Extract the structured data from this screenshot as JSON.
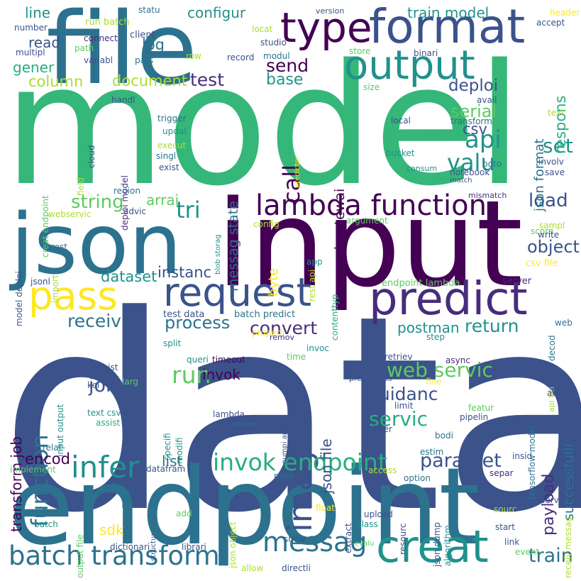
{
  "palette": [
    "#440154",
    "#472d7b",
    "#3b528b",
    "#2c728e",
    "#21918c",
    "#28ae80",
    "#5ec962",
    "#addc30",
    "#fde725"
  ],
  "words": [
    {
      "text": "data",
      "color": "#3b528b"
    },
    {
      "text": "model",
      "color": "#35b779"
    },
    {
      "text": "endpoint",
      "color": "#2c728e"
    },
    {
      "text": "input",
      "color": "#440154"
    },
    {
      "text": "json",
      "color": "#2c728e"
    },
    {
      "text": "file",
      "color": "#2c728e"
    },
    {
      "text": "format",
      "color": "#3b528b"
    },
    {
      "text": "type",
      "color": "#440154"
    },
    {
      "text": "output",
      "color": "#21918c"
    },
    {
      "text": "predict",
      "color": "#472d7b"
    },
    {
      "text": "request",
      "color": "#3b528b"
    },
    {
      "text": "pass",
      "color": "#fde725"
    },
    {
      "text": "creat",
      "color": "#21918c"
    },
    {
      "text": "lambda function",
      "color": "#440154"
    },
    {
      "text": "imag",
      "color": "#3b528b"
    },
    {
      "text": "messag",
      "color": "#2c728e"
    },
    {
      "text": "batch transform",
      "color": "#2c728e"
    },
    {
      "text": "infer",
      "color": "#21918c"
    },
    {
      "text": "invok endpoint",
      "color": "#28ae80"
    },
    {
      "text": "function",
      "color": "#2c728e"
    },
    {
      "text": "tri",
      "color": "#21918c"
    },
    {
      "text": "api",
      "color": "#21918c"
    },
    {
      "text": "call",
      "color": "#440154"
    },
    {
      "text": "valu",
      "color": "#21918c"
    },
    {
      "text": "set",
      "color": "#21918c"
    },
    {
      "text": "load",
      "color": "#3b528b"
    },
    {
      "text": "object",
      "color": "#3b528b"
    },
    {
      "text": "web servic",
      "color": "#5ec962"
    },
    {
      "text": "servic",
      "color": "#28ae80"
    },
    {
      "text": "job",
      "color": "#3b528b"
    },
    {
      "text": "run",
      "color": "#5ec962"
    },
    {
      "text": "receiv",
      "color": "#2c728e"
    },
    {
      "text": "paramet",
      "color": "#3b528b"
    },
    {
      "text": "string",
      "color": "#5ec962"
    },
    {
      "text": "train",
      "color": "#2c728e"
    },
    {
      "text": "convert",
      "color": "#472d7b"
    },
    {
      "text": "return",
      "color": "#21918c"
    },
    {
      "text": "process",
      "color": "#2c728e"
    },
    {
      "text": "guidanc",
      "color": "#3b528b"
    },
    {
      "text": "test",
      "color": "#472d7b"
    },
    {
      "text": "send",
      "color": "#440154"
    },
    {
      "text": "base",
      "color": "#21918c"
    },
    {
      "text": "deploi",
      "color": "#3b528b"
    },
    {
      "text": "serial",
      "color": "#5ec962"
    },
    {
      "text": "csv",
      "color": "#3b528b"
    },
    {
      "text": "document",
      "color": "#addc30"
    },
    {
      "text": "column",
      "color": "#addc30"
    },
    {
      "text": "dataset",
      "color": "#21918c"
    },
    {
      "text": "instanc",
      "color": "#3b528b"
    },
    {
      "text": "arrai",
      "color": "#5ec962"
    },
    {
      "text": "postman",
      "color": "#21918c"
    },
    {
      "text": "list",
      "color": "#2c728e"
    },
    {
      "text": "encod",
      "color": "#440154"
    },
    {
      "text": "sdk",
      "color": "#fde725"
    },
    {
      "text": "invok",
      "color": "#440154"
    },
    {
      "text": "train model",
      "color": "#21918c"
    },
    {
      "text": "configur",
      "color": "#21918c"
    },
    {
      "text": "log",
      "color": "#2c728e"
    },
    {
      "text": "line",
      "color": "#21918c"
    },
    {
      "text": "read",
      "color": "#3b528b"
    },
    {
      "text": "gener",
      "color": "#28ae80"
    },
    {
      "text": "transform job",
      "color": "#440154"
    },
    {
      "text": "json file",
      "color": "#3b528b"
    },
    {
      "text": "payload",
      "color": "#472d7b"
    },
    {
      "text": "successfulli",
      "color": "#2c728e"
    },
    {
      "text": "json format",
      "color": "#2c728e"
    },
    {
      "text": "respons",
      "color": "#28ae80"
    },
    {
      "text": "api gatewai",
      "color": "#440154"
    },
    {
      "text": "messag state",
      "color": "#2c728e"
    },
    {
      "text": "byte",
      "color": "#fde725"
    },
    {
      "text": "test data",
      "color": "#3b528b"
    },
    {
      "text": "batch predict",
      "color": "#2c728e"
    },
    {
      "text": "endpoint lambda",
      "color": "#5ec962"
    },
    {
      "text": "run batch",
      "color": "#addc30"
    },
    {
      "text": "client",
      "color": "#3b528b"
    },
    {
      "text": "connect",
      "color": "#472d7b"
    },
    {
      "text": "path",
      "color": "#5ec962"
    },
    {
      "text": "variabl",
      "color": "#3b528b"
    },
    {
      "text": "pars",
      "color": "#2c728e"
    },
    {
      "text": "multipl",
      "color": "#3b528b"
    },
    {
      "text": "number",
      "color": "#3b528b"
    },
    {
      "text": "statu",
      "color": "#2c728e"
    },
    {
      "text": "version",
      "color": "#3b528b"
    },
    {
      "text": "locat",
      "color": "#addc30"
    },
    {
      "text": "studio",
      "color": "#3b528b"
    },
    {
      "text": "record",
      "color": "#3b528b"
    },
    {
      "text": "modul",
      "color": "#2c728e"
    },
    {
      "text": "row",
      "color": "#addc30"
    },
    {
      "text": "header",
      "color": "#fde725"
    },
    {
      "text": "accept",
      "color": "#3b528b"
    },
    {
      "text": "store",
      "color": "#5ec962"
    },
    {
      "text": "binari",
      "color": "#3b528b"
    },
    {
      "text": "size",
      "color": "#5ec962"
    },
    {
      "text": "avail",
      "color": "#3b528b"
    },
    {
      "text": "handl",
      "color": "#3b528b"
    },
    {
      "text": "trigger",
      "color": "#2c728e"
    },
    {
      "text": "updat",
      "color": "#21918c"
    },
    {
      "text": "execut",
      "color": "#addc30"
    },
    {
      "text": "singl",
      "color": "#2c728e"
    },
    {
      "text": "exist",
      "color": "#3b528b"
    },
    {
      "text": "cloud",
      "color": "#3b528b"
    },
    {
      "text": "deploi model",
      "color": "#472d7b"
    },
    {
      "text": "local",
      "color": "#3b528b"
    },
    {
      "text": "transform",
      "color": "#2c728e"
    },
    {
      "text": "text",
      "color": "#addc30"
    },
    {
      "text": "predictor",
      "color": "#fde725"
    },
    {
      "text": "bucket",
      "color": "#21918c"
    },
    {
      "text": "consum",
      "color": "#21918c"
    },
    {
      "text": "boto",
      "color": "#2c728e"
    },
    {
      "text": "notebook",
      "color": "#3b528b"
    },
    {
      "text": "involv",
      "color": "#3b528b"
    },
    {
      "text": "save",
      "color": "#3b528b"
    },
    {
      "text": "match",
      "color": "#3b528b"
    },
    {
      "text": "mismatch",
      "color": "#472d7b"
    },
    {
      "text": "region",
      "color": "#2c728e"
    },
    {
      "text": "advic",
      "color": "#3b528b"
    },
    {
      "text": "webservic",
      "color": "#addc30"
    },
    {
      "text": "creat endpoint",
      "color": "#5ec962"
    },
    {
      "text": "field",
      "color": "#addc30"
    },
    {
      "text": "blob storag",
      "color": "#21918c"
    },
    {
      "text": "config",
      "color": "#addc30"
    },
    {
      "text": "argument",
      "color": "#5ec962"
    },
    {
      "text": "rest api",
      "color": "#addc30"
    },
    {
      "text": "score",
      "color": "#5ec962"
    },
    {
      "text": "sampl",
      "color": "#addc30"
    },
    {
      "text": "write",
      "color": "#3b528b"
    },
    {
      "text": "csv file",
      "color": "#fde725"
    },
    {
      "text": "server",
      "color": "#472d7b"
    },
    {
      "text": "app",
      "color": "#21918c"
    },
    {
      "text": "contenttyp",
      "color": "#28ae80"
    },
    {
      "text": "import",
      "color": "#addc30"
    },
    {
      "text": "rest",
      "color": "#2c728e"
    },
    {
      "text": "model deploi",
      "color": "#3b528b"
    },
    {
      "text": "jsonl",
      "color": "#3b528b"
    },
    {
      "text": "properli",
      "color": "#fde725"
    },
    {
      "text": "remov",
      "color": "#472d7b"
    },
    {
      "text": "invoc",
      "color": "#21918c"
    },
    {
      "text": "time",
      "color": "#5ec962"
    },
    {
      "text": "split",
      "color": "#21918c"
    },
    {
      "text": "queri",
      "color": "#21918c"
    },
    {
      "text": "timeout",
      "color": "#440154"
    },
    {
      "text": "retriev",
      "color": "#3b528b"
    },
    {
      "text": "async",
      "color": "#472d7b"
    },
    {
      "text": "step",
      "color": "#21918c"
    },
    {
      "text": "decod",
      "color": "#2c728e"
    },
    {
      "text": "web",
      "color": "#2c728e"
    },
    {
      "text": "persist",
      "color": "#3b528b"
    },
    {
      "text": "kei",
      "color": "#3b528b"
    },
    {
      "text": "larg",
      "color": "#5ec962"
    },
    {
      "text": "text csv",
      "color": "#21918c"
    },
    {
      "text": "assist",
      "color": "#28ae80"
    },
    {
      "text": "specifi",
      "color": "#21918c"
    },
    {
      "text": "modifi",
      "color": "#21918c"
    },
    {
      "text": "lambda",
      "color": "#3b528b"
    },
    {
      "text": "environ",
      "color": "#2c728e"
    },
    {
      "text": "numpi arrai",
      "color": "#3b528b"
    },
    {
      "text": "preprocess",
      "color": "#3b528b"
    },
    {
      "text": "fine",
      "color": "#fde725"
    },
    {
      "text": "limit",
      "color": "#3b528b"
    },
    {
      "text": "filter",
      "color": "#3b528b"
    },
    {
      "text": "featur",
      "color": "#5ec962"
    },
    {
      "text": "pipelin",
      "color": "#3b528b"
    },
    {
      "text": "bodi",
      "color": "#2c728e"
    },
    {
      "text": "tensorflow model",
      "color": "#2c728e"
    },
    {
      "text": "api kei",
      "color": "#addc30"
    },
    {
      "text": "ad",
      "color": "#3b528b"
    },
    {
      "text": "input output",
      "color": "#21918c"
    },
    {
      "text": "relat",
      "color": "#2c728e"
    },
    {
      "text": "implement",
      "color": "#5ec962"
    },
    {
      "text": "datafram",
      "color": "#3b528b"
    },
    {
      "text": "miss",
      "color": "#2c728e"
    },
    {
      "text": "estim",
      "color": "#2c728e"
    },
    {
      "text": "insid",
      "color": "#3b528b"
    },
    {
      "text": "separ",
      "color": "#472d7b"
    },
    {
      "text": "access",
      "color": "#addc30"
    },
    {
      "text": "option",
      "color": "#2c728e"
    },
    {
      "text": "extract",
      "color": "#3b528b"
    },
    {
      "text": "algorithm",
      "color": "#21918c"
    },
    {
      "text": "resourc",
      "color": "#3b528b"
    },
    {
      "text": "json dump",
      "color": "#3b528b"
    },
    {
      "text": "upload",
      "color": "#3b528b"
    },
    {
      "text": "class",
      "color": "#21918c"
    },
    {
      "text": "float",
      "color": "#fde725"
    },
    {
      "text": "json object",
      "color": "#addc30"
    },
    {
      "text": "output file",
      "color": "#5ec962"
    },
    {
      "text": "add",
      "color": "#5ec962"
    },
    {
      "text": "batch",
      "color": "#21918c"
    },
    {
      "text": "structur",
      "color": "#3b528b"
    },
    {
      "text": "dictionari",
      "color": "#3b528b"
    },
    {
      "text": "librari",
      "color": "#3b528b"
    },
    {
      "text": "allow",
      "color": "#addc30"
    },
    {
      "text": "directli",
      "color": "#3b528b"
    },
    {
      "text": "evalu",
      "color": "#5ec962"
    },
    {
      "text": "show",
      "color": "#3b528b"
    },
    {
      "text": "serv",
      "color": "#3b528b"
    },
    {
      "text": "sourc",
      "color": "#addc30"
    },
    {
      "text": "start",
      "color": "#3b528b"
    },
    {
      "text": "link",
      "color": "#3b528b"
    },
    {
      "text": "event",
      "color": "#5ec962"
    },
    {
      "text": "receiv messag",
      "color": "#addc30"
    }
  ]
}
